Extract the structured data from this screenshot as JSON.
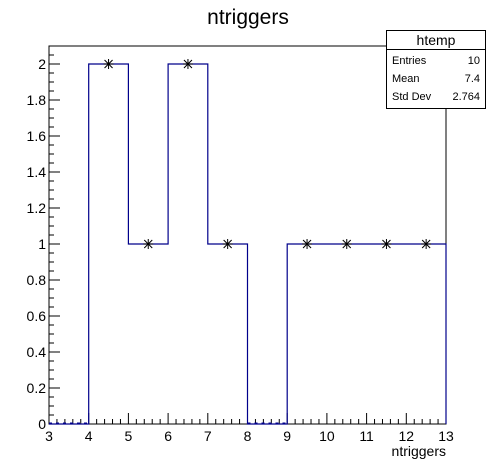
{
  "chart_data": {
    "type": "histogram",
    "title": "ntriggers",
    "xlabel": "ntriggers",
    "ylabel": "",
    "xlim": [
      3,
      13
    ],
    "ylim": [
      0,
      2.1
    ],
    "bin_edges": [
      3,
      4,
      5,
      6,
      7,
      8,
      9,
      10,
      11,
      12,
      13
    ],
    "values": [
      0,
      2,
      1,
      2,
      1,
      0,
      1,
      1,
      1,
      1
    ],
    "marker_bins": [
      4.5,
      5.5,
      6.5,
      7.5,
      9.5,
      10.5,
      11.5,
      12.5
    ],
    "marker_values": [
      2,
      1,
      2,
      1,
      1,
      1,
      1,
      1
    ],
    "x_ticks": [
      3,
      4,
      5,
      6,
      7,
      8,
      9,
      10,
      11,
      12,
      13
    ],
    "y_ticks": [
      0,
      0.2,
      0.4,
      0.6,
      0.8,
      1,
      1.2,
      1.4,
      1.6,
      1.8,
      2
    ],
    "line_color": "#00008b",
    "marker_color": "#000000"
  },
  "stats": {
    "title": "htemp",
    "rows": [
      {
        "label": "Entries",
        "value": "10"
      },
      {
        "label": "Mean",
        "value": "7.4"
      },
      {
        "label": "Std Dev",
        "value": "2.764"
      }
    ]
  }
}
